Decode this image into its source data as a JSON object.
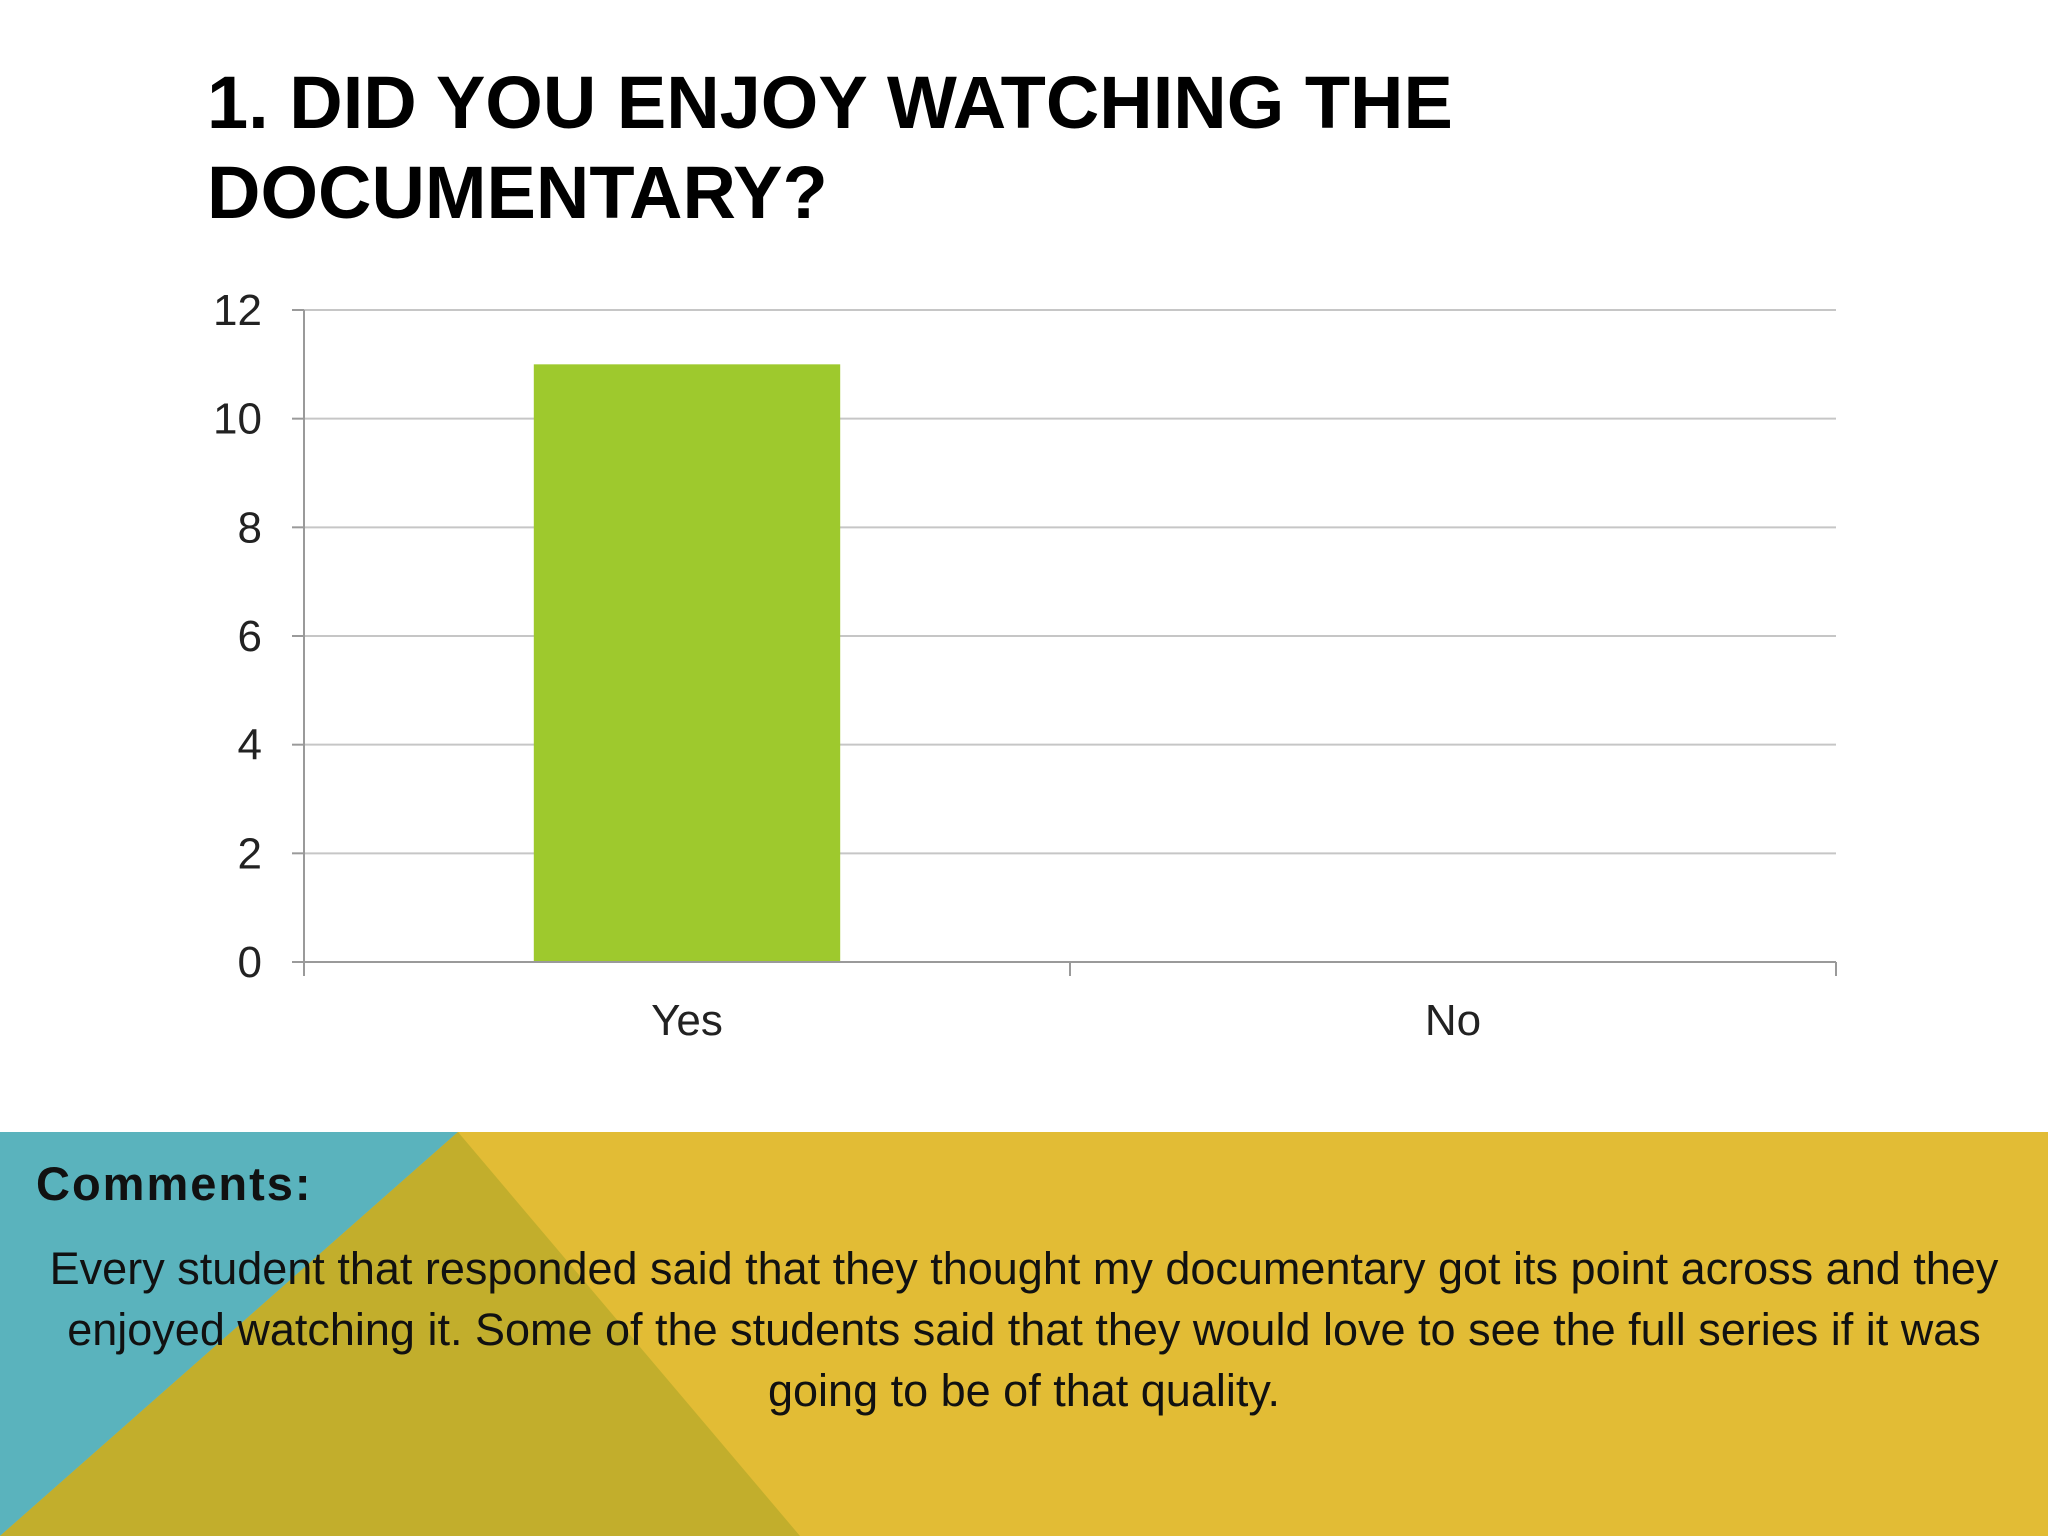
{
  "slide": {
    "title_lines": [
      "1. DID YOU ENJOY WATCHING THE",
      "DOCUMENTARY?"
    ]
  },
  "chart_data": {
    "type": "bar",
    "categories": [
      "Yes",
      "No"
    ],
    "values": [
      11,
      0
    ],
    "title": "",
    "xlabel": "",
    "ylabel": "",
    "ylim": [
      0,
      12
    ],
    "yticks": [
      "0",
      "2",
      "4",
      "6",
      "8",
      "10",
      "12"
    ],
    "grid": true,
    "legend": "none",
    "bar_color": "#9ec92d"
  },
  "footer": {
    "label": "Comments:",
    "text": "Every student that responded said that they thought my documentary got its point across and they enjoyed watching it. Some of the students said that they would love to see the full series if it was going to be of that quality.",
    "colors": {
      "base": "#e2bc35",
      "teal": "#5ab3bd",
      "olive": "#c2ae2c"
    }
  }
}
